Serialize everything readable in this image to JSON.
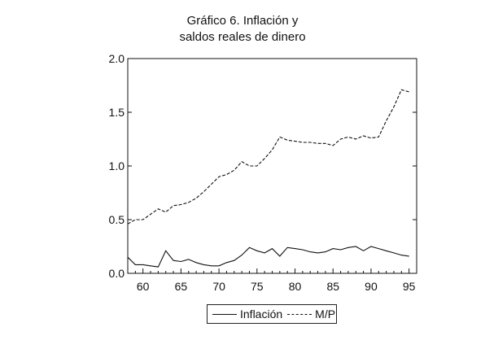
{
  "chart_data": {
    "type": "line",
    "title": [
      "Gráfico 6. Inflación y",
      "saldos reales de dinero"
    ],
    "xlabel": "",
    "ylabel": "",
    "xlim": [
      1958,
      1996
    ],
    "ylim": [
      0.0,
      2.0
    ],
    "xticks": [
      1960,
      1965,
      1970,
      1975,
      1980,
      1985,
      1990,
      1995
    ],
    "xtick_labels": [
      "60",
      "65",
      "70",
      "75",
      "80",
      "85",
      "90",
      "95"
    ],
    "yticks": [
      0.0,
      0.5,
      1.0,
      1.5,
      2.0
    ],
    "ytick_labels": [
      "0.0",
      "0.5",
      "1.0",
      "1.5",
      "2.0"
    ],
    "grid": false,
    "legend_position": "bottom",
    "x": [
      1958,
      1959,
      1960,
      1961,
      1962,
      1963,
      1964,
      1965,
      1966,
      1967,
      1968,
      1969,
      1970,
      1971,
      1972,
      1973,
      1974,
      1975,
      1976,
      1977,
      1978,
      1979,
      1980,
      1981,
      1982,
      1983,
      1984,
      1985,
      1986,
      1987,
      1988,
      1989,
      1990,
      1991,
      1992,
      1993,
      1994,
      1995
    ],
    "series": [
      {
        "name": "Inflación",
        "style": "solid",
        "values": [
          0.15,
          0.08,
          0.08,
          0.07,
          0.06,
          0.21,
          0.12,
          0.11,
          0.13,
          0.1,
          0.08,
          0.07,
          0.07,
          0.1,
          0.12,
          0.17,
          0.24,
          0.21,
          0.19,
          0.23,
          0.16,
          0.24,
          0.23,
          0.22,
          0.2,
          0.19,
          0.2,
          0.23,
          0.22,
          0.24,
          0.25,
          0.21,
          0.25,
          0.23,
          0.21,
          0.19,
          0.17,
          0.16
        ]
      },
      {
        "name": "M/P",
        "style": "dashed",
        "values": [
          0.46,
          0.5,
          0.5,
          0.55,
          0.6,
          0.57,
          0.63,
          0.64,
          0.66,
          0.7,
          0.76,
          0.83,
          0.9,
          0.92,
          0.96,
          1.04,
          1.0,
          1.0,
          1.07,
          1.15,
          1.27,
          1.24,
          1.23,
          1.22,
          1.22,
          1.21,
          1.21,
          1.19,
          1.25,
          1.27,
          1.25,
          1.28,
          1.26,
          1.27,
          1.42,
          1.55,
          1.71,
          1.69
        ]
      }
    ]
  }
}
